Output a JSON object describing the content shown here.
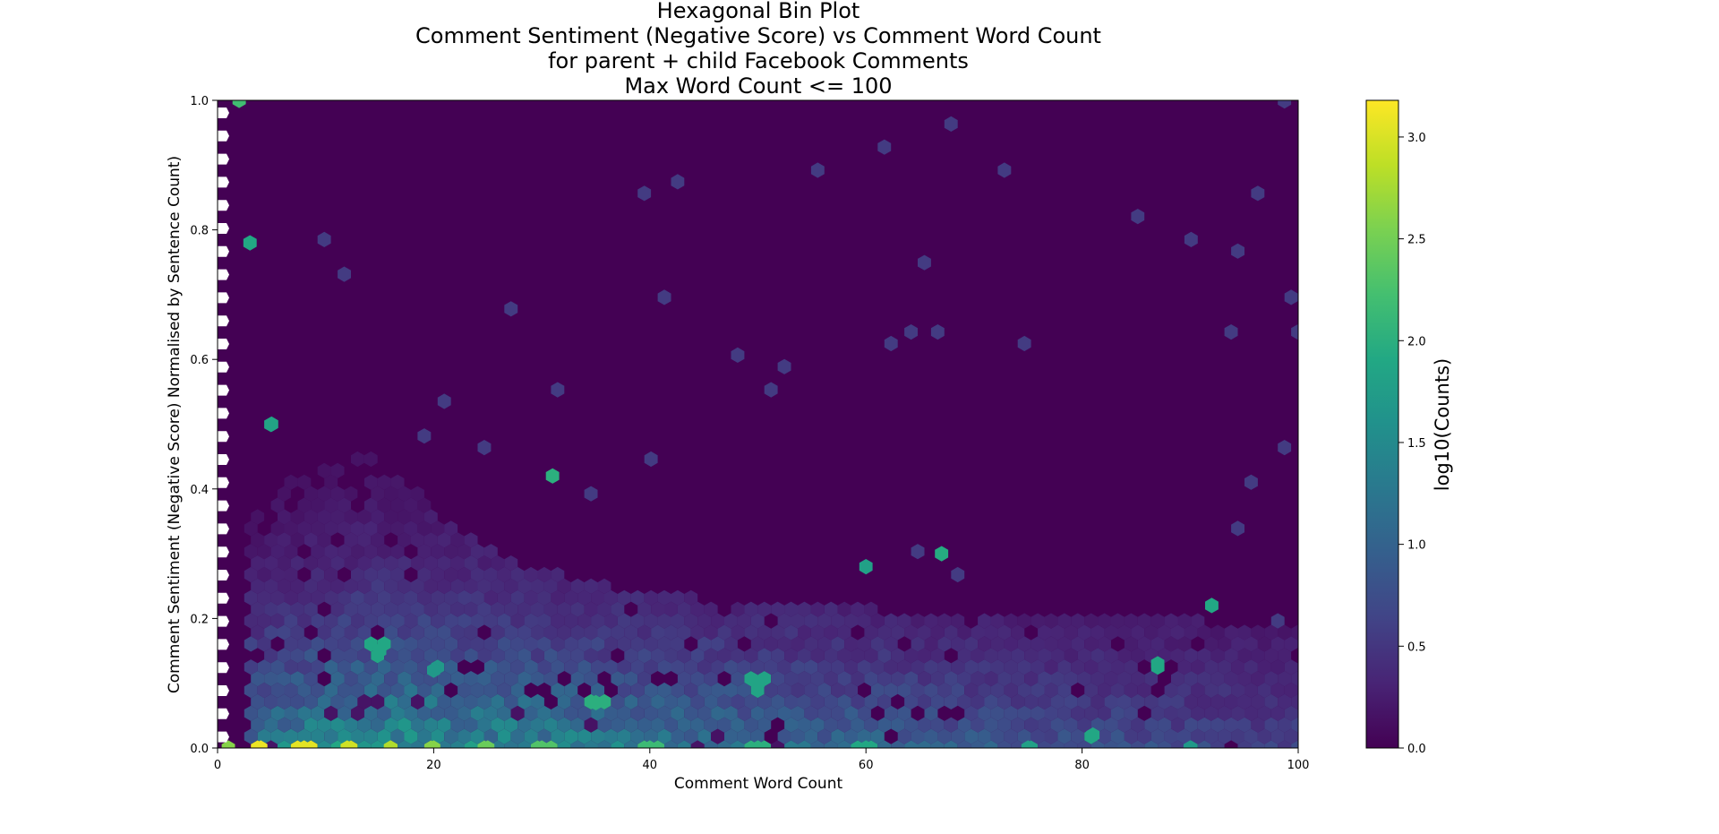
{
  "chart_data": {
    "type": "heatmap",
    "title_lines": [
      "Hexagonal Bin Plot",
      "Comment Sentiment (Negative Score) vs Comment Word Count",
      "for parent + child Facebook Comments",
      "Max Word Count <= 100"
    ],
    "xlabel": "Comment Word Count",
    "ylabel": "Comment Sentiment (Negative Score) Normalised by Sentence Count)",
    "xlim": [
      0,
      100
    ],
    "ylim": [
      0,
      1.0
    ],
    "x_ticks": [
      0,
      20,
      40,
      60,
      80,
      100
    ],
    "x_tick_labels": [
      "0",
      "20",
      "40",
      "60",
      "80",
      "100"
    ],
    "y_ticks": [
      0.0,
      0.2,
      0.4,
      0.6,
      0.8,
      1.0
    ],
    "y_tick_labels": [
      "0.0",
      "0.2",
      "0.4",
      "0.6",
      "0.8",
      "1.0"
    ],
    "colorbar": {
      "label": "log10(Counts)",
      "range": [
        0.0,
        3.18
      ],
      "ticks": [
        0.0,
        0.5,
        1.0,
        1.5,
        2.0,
        2.5,
        3.0
      ],
      "tick_labels": [
        "0.0",
        "0.5",
        "1.0",
        "1.5",
        "2.0",
        "2.5",
        "3.0"
      ],
      "colormap": "viridis"
    },
    "grid": false,
    "background_value": 0.0,
    "hotspots": [
      {
        "x": 1,
        "y": 0.0,
        "value": 2.6
      },
      {
        "x": 4,
        "y": 0.0,
        "value": 3.1
      },
      {
        "x": 8,
        "y": 0.0,
        "value": 3.05
      },
      {
        "x": 12,
        "y": 0.0,
        "value": 2.95
      },
      {
        "x": 16,
        "y": 0.0,
        "value": 2.8
      },
      {
        "x": 20,
        "y": 0.0,
        "value": 2.6
      },
      {
        "x": 25,
        "y": 0.0,
        "value": 2.45
      },
      {
        "x": 30,
        "y": 0.0,
        "value": 2.3
      },
      {
        "x": 40,
        "y": 0.0,
        "value": 2.15
      },
      {
        "x": 50,
        "y": 0.0,
        "value": 2.0
      },
      {
        "x": 60,
        "y": 0.0,
        "value": 1.9
      },
      {
        "x": 75,
        "y": 0.0,
        "value": 1.8
      },
      {
        "x": 90,
        "y": 0.0,
        "value": 1.7
      },
      {
        "x": 2,
        "y": 1.0,
        "value": 2.2
      },
      {
        "x": 3,
        "y": 0.78,
        "value": 1.9
      },
      {
        "x": 5,
        "y": 0.5,
        "value": 1.85
      },
      {
        "x": 15,
        "y": 0.15,
        "value": 1.9
      },
      {
        "x": 20,
        "y": 0.12,
        "value": 1.7
      },
      {
        "x": 31,
        "y": 0.42,
        "value": 2.0
      },
      {
        "x": 35,
        "y": 0.07,
        "value": 2.0
      },
      {
        "x": 50,
        "y": 0.1,
        "value": 1.85
      },
      {
        "x": 60,
        "y": 0.28,
        "value": 1.8
      },
      {
        "x": 67,
        "y": 0.3,
        "value": 1.95
      },
      {
        "x": 81,
        "y": 0.02,
        "value": 1.9
      },
      {
        "x": 87,
        "y": 0.13,
        "value": 1.9
      },
      {
        "x": 92,
        "y": 0.22,
        "value": 1.9
      }
    ]
  }
}
